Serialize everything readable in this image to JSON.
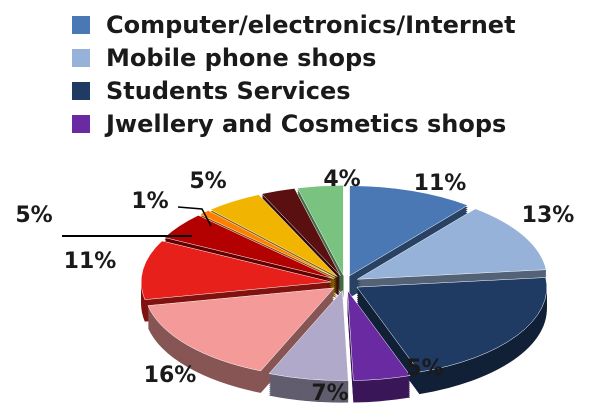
{
  "chart_data": {
    "type": "pie",
    "style": "3d-exploded",
    "legend_position": "top-left",
    "legend": [
      {
        "label": "Computer/electronics/Internet",
        "color": "#4a78b5"
      },
      {
        "label": "Mobile phone shops",
        "color": "#96b2d9"
      },
      {
        "label": "Students Services",
        "color": "#1f3b63"
      },
      {
        "label": "Jwellery and Cosmetics shops",
        "color": "#6a2aa1"
      }
    ],
    "slices": [
      {
        "value": 11,
        "label": "11%",
        "color": "#4a78b5"
      },
      {
        "value": 13,
        "label": "13%",
        "color": "#96b2d9"
      },
      {
        "value": 22,
        "label": "",
        "color": "#1f3b63"
      },
      {
        "value": 5,
        "label": "5%",
        "color": "#6a2aa1"
      },
      {
        "value": 7,
        "label": "7%",
        "color": "#b0a9c9"
      },
      {
        "value": 16,
        "label": "16%",
        "color": "#f49a98"
      },
      {
        "value": 11,
        "label": "11%",
        "color": "#e8201c"
      },
      {
        "value": 5,
        "label": "5%",
        "color": "#b30000"
      },
      {
        "value": 1,
        "label": "1%",
        "color": "#ff8000"
      },
      {
        "value": 5,
        "label": "5%",
        "color": "#f1b400"
      },
      {
        "value": 3,
        "label": "",
        "color": "#5a1010"
      },
      {
        "value": 4,
        "label": "4%",
        "color": "#79c27f"
      }
    ]
  }
}
